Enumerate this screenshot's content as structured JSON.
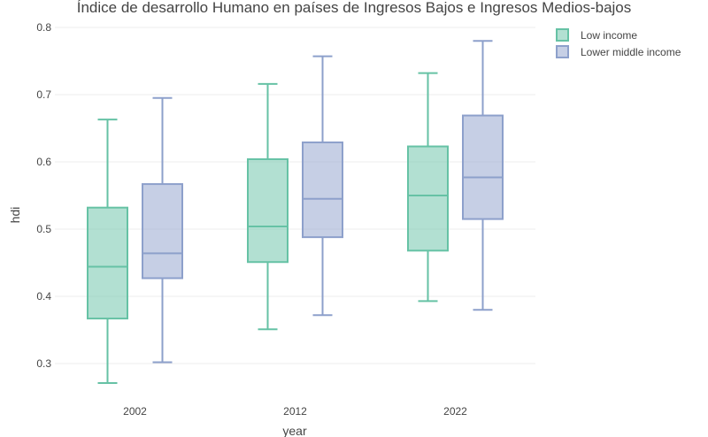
{
  "chart_data": {
    "type": "box",
    "title": "Índice de desarrollo Humano en países de Ingresos Bajos e Ingresos Medios-bajos",
    "xlabel": "year",
    "ylabel": "hdi",
    "categories": [
      "2002",
      "2012",
      "2022"
    ],
    "ylim": [
      0.25,
      0.8
    ],
    "yticks": [
      0.3,
      0.4,
      0.5,
      0.6,
      0.7,
      0.8
    ],
    "ytick_labels": [
      "0.3",
      "0.4",
      "0.5",
      "0.6",
      "0.7",
      "0.8"
    ],
    "grid": true,
    "legend_position": "top-right",
    "series": [
      {
        "name": "Low income",
        "color": "#66c2a5",
        "fill": "rgba(102,194,165,0.5)",
        "boxes": [
          {
            "min": 0.271,
            "q1": 0.367,
            "median": 0.444,
            "q3": 0.532,
            "max": 0.663
          },
          {
            "min": 0.351,
            "q1": 0.451,
            "median": 0.504,
            "q3": 0.604,
            "max": 0.716
          },
          {
            "min": 0.393,
            "q1": 0.468,
            "median": 0.55,
            "q3": 0.623,
            "max": 0.732
          }
        ]
      },
      {
        "name": "Lower middle income",
        "color": "#8da0cb",
        "fill": "rgba(141,160,203,0.5)",
        "boxes": [
          {
            "min": 0.302,
            "q1": 0.427,
            "median": 0.464,
            "q3": 0.567,
            "max": 0.695
          },
          {
            "min": 0.372,
            "q1": 0.488,
            "median": 0.545,
            "q3": 0.629,
            "max": 0.757
          },
          {
            "min": 0.38,
            "q1": 0.515,
            "median": 0.577,
            "q3": 0.669,
            "max": 0.78
          }
        ]
      }
    ]
  }
}
